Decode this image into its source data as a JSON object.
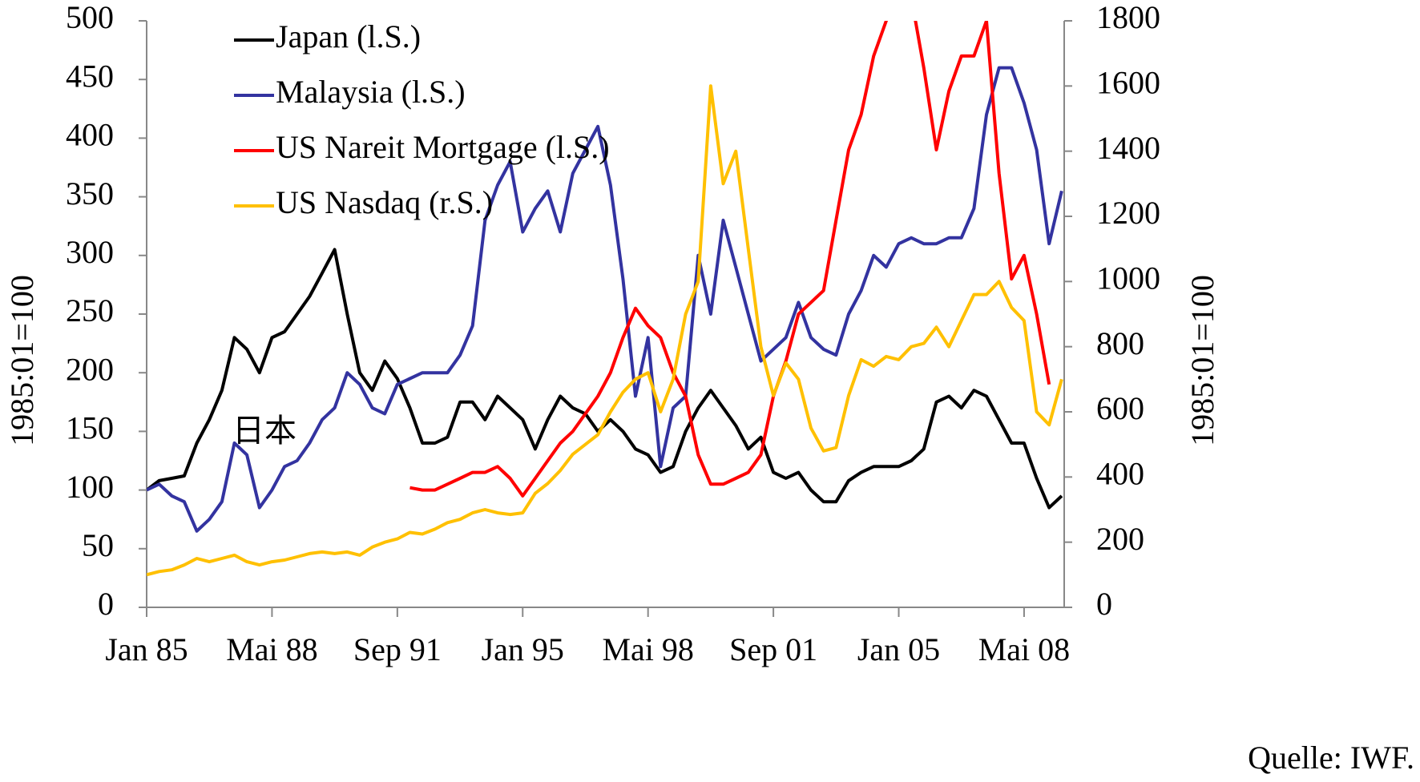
{
  "chart_data": {
    "type": "line",
    "y_label": "1985:01=100",
    "y2_label": "1985:01=100",
    "annotations": [
      "日本"
    ],
    "source": "Quelle: IWF.",
    "categories": [
      "Jan 85",
      null,
      null,
      null,
      null,
      null,
      null,
      null,
      null,
      null,
      "Mai 88",
      null,
      null,
      null,
      null,
      null,
      null,
      null,
      null,
      null,
      "Sep 91",
      null,
      null,
      null,
      null,
      null,
      null,
      null,
      null,
      null,
      "Jan 95",
      null,
      null,
      null,
      null,
      null,
      null,
      null,
      null,
      null,
      "Mai 98",
      null,
      null,
      null,
      null,
      null,
      null,
      null,
      null,
      null,
      "Sep 01",
      null,
      null,
      null,
      null,
      null,
      null,
      null,
      null,
      null,
      "Jan 05",
      null,
      null,
      null,
      null,
      null,
      null,
      null,
      null,
      null,
      "Mai 08",
      null,
      null,
      null
    ],
    "ylim": [
      0,
      500
    ],
    "yticks": [
      0,
      50,
      100,
      150,
      200,
      250,
      300,
      350,
      400,
      450,
      500
    ],
    "y2lim": [
      0,
      1800
    ],
    "y2ticks": [
      0,
      200,
      400,
      600,
      800,
      1000,
      1200,
      1400,
      1600,
      1800
    ],
    "legend": "upper left",
    "series": [
      {
        "name": "Japan (l.S.)",
        "color": "#000000",
        "values": [
          100,
          108,
          110,
          112,
          140,
          160,
          185,
          230,
          220,
          200,
          230,
          235,
          250,
          265,
          285,
          305,
          250,
          200,
          185,
          210,
          195,
          170,
          140,
          140,
          145,
          175,
          175,
          160,
          180,
          170,
          160,
          135,
          160,
          180,
          170,
          165,
          150,
          160,
          150,
          135,
          130,
          115,
          120,
          150,
          170,
          185,
          170,
          155,
          135,
          145,
          115,
          110,
          115,
          100,
          90,
          90,
          108,
          115,
          120,
          120,
          120,
          125,
          135,
          175,
          180,
          170,
          185,
          180,
          160,
          140,
          140,
          110,
          85,
          95
        ]
      },
      {
        "name": "Malaysia (l.S.)",
        "color": "#3333a0",
        "values": [
          100,
          105,
          95,
          90,
          65,
          75,
          90,
          140,
          130,
          85,
          100,
          120,
          125,
          140,
          160,
          170,
          200,
          190,
          170,
          165,
          190,
          195,
          200,
          200,
          200,
          215,
          240,
          330,
          360,
          380,
          320,
          340,
          355,
          320,
          370,
          390,
          410,
          360,
          280,
          180,
          230,
          120,
          170,
          180,
          300,
          250,
          330,
          290,
          250,
          210,
          220,
          230,
          260,
          230,
          220,
          215,
          250,
          270,
          300,
          290,
          310,
          315,
          310,
          310,
          315,
          315,
          340,
          420,
          460,
          460,
          430,
          390,
          310,
          355
        ]
      },
      {
        "name": "US Nareit Mortgage (l.S.)",
        "color": "#ff0000",
        "values": [
          null,
          null,
          null,
          null,
          null,
          null,
          null,
          null,
          null,
          null,
          null,
          null,
          null,
          null,
          null,
          null,
          null,
          null,
          null,
          null,
          null,
          102,
          100,
          100,
          105,
          110,
          115,
          115,
          120,
          110,
          95,
          110,
          125,
          140,
          150,
          165,
          180,
          200,
          230,
          255,
          240,
          230,
          200,
          180,
          130,
          105,
          105,
          110,
          115,
          130,
          180,
          210,
          250,
          260,
          270,
          330,
          390,
          420,
          470,
          500,
          530,
          520,
          460,
          390,
          440,
          470,
          470,
          500,
          370,
          280,
          300,
          250,
          190,
          null
        ]
      },
      {
        "name": "US Nasdaq (r.S.)",
        "color": "#ffc000",
        "axis": "y2",
        "values": [
          100,
          110,
          115,
          130,
          150,
          140,
          150,
          160,
          140,
          130,
          140,
          145,
          155,
          165,
          170,
          165,
          170,
          160,
          185,
          200,
          210,
          230,
          225,
          240,
          260,
          270,
          290,
          300,
          290,
          285,
          290,
          350,
          380,
          420,
          470,
          500,
          530,
          600,
          660,
          700,
          720,
          600,
          700,
          900,
          1000,
          1600,
          1300,
          1400,
          1100,
          800,
          650,
          750,
          700,
          550,
          480,
          490,
          650,
          760,
          740,
          770,
          760,
          800,
          810,
          860,
          800,
          880,
          960,
          960,
          1000,
          920,
          880,
          600,
          560,
          700
        ]
      }
    ]
  }
}
